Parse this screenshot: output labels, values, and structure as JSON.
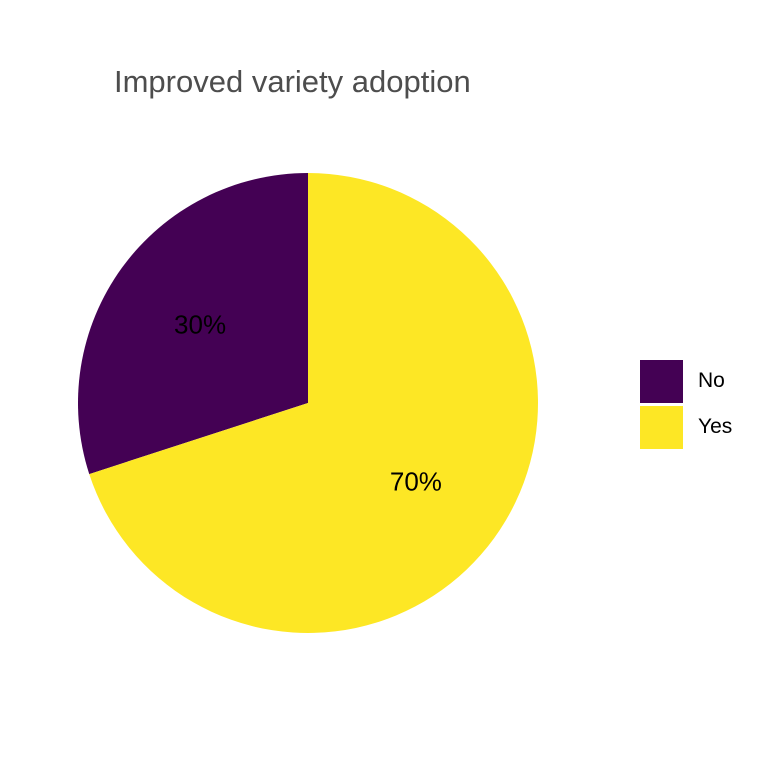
{
  "chart_data": {
    "type": "pie",
    "title": "Improved variety adoption",
    "categories": [
      "No",
      "Yes"
    ],
    "values": [
      30,
      70
    ],
    "labels": [
      "30%",
      "70%"
    ],
    "colors": [
      "#440154",
      "#FDE725"
    ],
    "legend_position": "right",
    "start": "top",
    "direction": "counterclockwise"
  }
}
